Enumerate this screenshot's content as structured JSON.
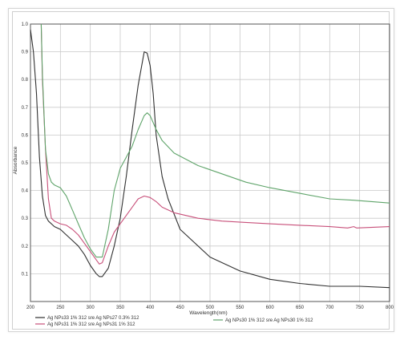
{
  "chart_data": {
    "type": "line",
    "xlabel": "Wavelength(nm)",
    "ylabel": "Absorbance",
    "xlim": [
      200,
      800
    ],
    "ylim": [
      0.0,
      1.0
    ],
    "xticks": [
      "200",
      "250",
      "300",
      "350",
      "400",
      "450",
      "500",
      "550",
      "600",
      "650",
      "700",
      "750",
      "800"
    ],
    "yticks": [
      "0.1",
      "0.2",
      "0.3",
      "0.4",
      "0.5",
      "0.6",
      "0.7",
      "0.8",
      "0.9",
      "1.0"
    ],
    "grid": true,
    "series": [
      {
        "name": "Ag NPs33 1% 312 sre Ag NPs27 0.3% 312",
        "color": "#303030",
        "points": [
          [
            200,
            0.98
          ],
          [
            205,
            0.9
          ],
          [
            210,
            0.75
          ],
          [
            215,
            0.52
          ],
          [
            220,
            0.38
          ],
          [
            225,
            0.31
          ],
          [
            230,
            0.29
          ],
          [
            240,
            0.27
          ],
          [
            250,
            0.26
          ],
          [
            260,
            0.24
          ],
          [
            270,
            0.22
          ],
          [
            280,
            0.2
          ],
          [
            290,
            0.17
          ],
          [
            300,
            0.13
          ],
          [
            310,
            0.1
          ],
          [
            315,
            0.09
          ],
          [
            320,
            0.09
          ],
          [
            330,
            0.12
          ],
          [
            340,
            0.2
          ],
          [
            350,
            0.3
          ],
          [
            360,
            0.45
          ],
          [
            370,
            0.62
          ],
          [
            380,
            0.78
          ],
          [
            390,
            0.9
          ],
          [
            395,
            0.895
          ],
          [
            400,
            0.85
          ],
          [
            405,
            0.75
          ],
          [
            410,
            0.6
          ],
          [
            420,
            0.45
          ],
          [
            430,
            0.37
          ],
          [
            450,
            0.26
          ],
          [
            500,
            0.16
          ],
          [
            550,
            0.11
          ],
          [
            600,
            0.08
          ],
          [
            650,
            0.065
          ],
          [
            700,
            0.055
          ],
          [
            750,
            0.055
          ],
          [
            800,
            0.05
          ]
        ]
      },
      {
        "name": "Ag NPs31 1% 312 sre Ag NPs31 1% 312",
        "color": "#c8507a",
        "points": [
          [
            218,
            1.0
          ],
          [
            220,
            0.8
          ],
          [
            225,
            0.55
          ],
          [
            230,
            0.37
          ],
          [
            235,
            0.3
          ],
          [
            240,
            0.29
          ],
          [
            250,
            0.28
          ],
          [
            260,
            0.275
          ],
          [
            270,
            0.26
          ],
          [
            280,
            0.24
          ],
          [
            290,
            0.21
          ],
          [
            300,
            0.18
          ],
          [
            310,
            0.15
          ],
          [
            315,
            0.135
          ],
          [
            320,
            0.14
          ],
          [
            330,
            0.2
          ],
          [
            340,
            0.25
          ],
          [
            350,
            0.28
          ],
          [
            360,
            0.31
          ],
          [
            370,
            0.34
          ],
          [
            380,
            0.37
          ],
          [
            390,
            0.38
          ],
          [
            400,
            0.375
          ],
          [
            410,
            0.36
          ],
          [
            420,
            0.34
          ],
          [
            440,
            0.32
          ],
          [
            480,
            0.3
          ],
          [
            520,
            0.29
          ],
          [
            560,
            0.285
          ],
          [
            600,
            0.28
          ],
          [
            650,
            0.275
          ],
          [
            700,
            0.27
          ],
          [
            730,
            0.265
          ],
          [
            740,
            0.27
          ],
          [
            745,
            0.265
          ],
          [
            800,
            0.27
          ]
        ]
      },
      {
        "name": "Ag NPs30 1% 312 sre Ag NPs30 1% 312",
        "color": "#5fa46a",
        "points": [
          [
            218,
            1.0
          ],
          [
            220,
            0.82
          ],
          [
            225,
            0.55
          ],
          [
            230,
            0.46
          ],
          [
            235,
            0.43
          ],
          [
            240,
            0.42
          ],
          [
            250,
            0.41
          ],
          [
            260,
            0.38
          ],
          [
            270,
            0.33
          ],
          [
            280,
            0.28
          ],
          [
            290,
            0.23
          ],
          [
            300,
            0.19
          ],
          [
            310,
            0.16
          ],
          [
            320,
            0.16
          ],
          [
            330,
            0.26
          ],
          [
            340,
            0.4
          ],
          [
            350,
            0.48
          ],
          [
            360,
            0.52
          ],
          [
            370,
            0.56
          ],
          [
            380,
            0.62
          ],
          [
            390,
            0.67
          ],
          [
            395,
            0.68
          ],
          [
            400,
            0.67
          ],
          [
            410,
            0.62
          ],
          [
            420,
            0.58
          ],
          [
            440,
            0.535
          ],
          [
            480,
            0.49
          ],
          [
            520,
            0.46
          ],
          [
            560,
            0.43
          ],
          [
            600,
            0.41
          ],
          [
            650,
            0.39
          ],
          [
            700,
            0.37
          ],
          [
            740,
            0.365
          ],
          [
            770,
            0.36
          ],
          [
            800,
            0.355
          ]
        ]
      }
    ],
    "legend": [
      {
        "label": "Ag NPs33 1% 312 sre Ag NPs27 0.3% 312",
        "color": "#303030"
      },
      {
        "label": "Ag NPs31 1% 312 sre Ag NPs31 1% 312",
        "color": "#c8507a"
      },
      {
        "label": "Ag NPs30 1% 312 sre Ag NPs30 1% 312",
        "color": "#5fa46a"
      }
    ]
  }
}
